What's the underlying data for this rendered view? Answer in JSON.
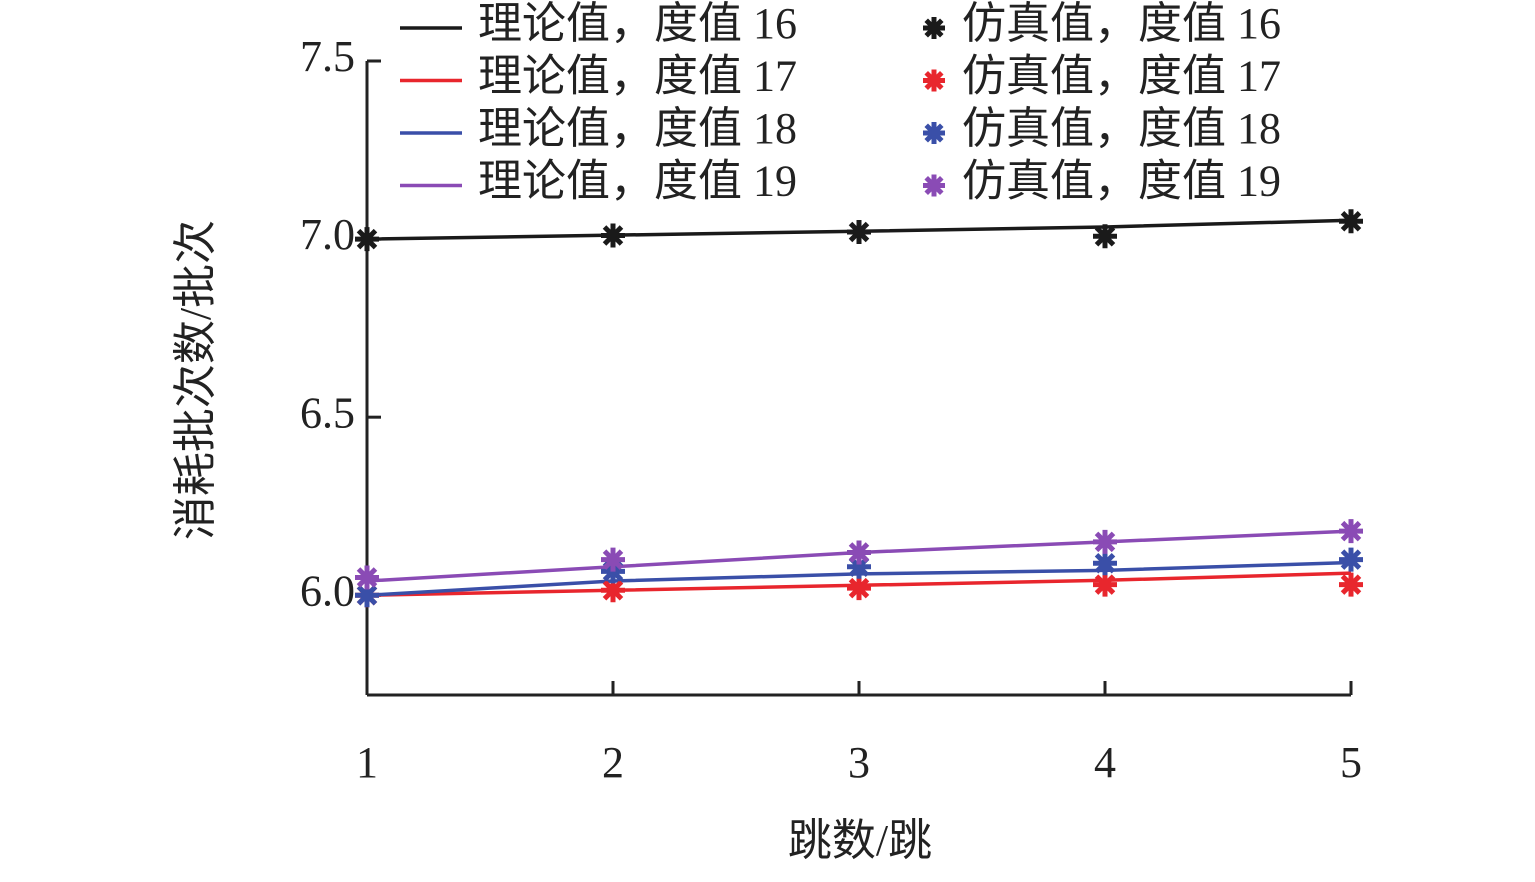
{
  "chart_data": {
    "type": "line",
    "xlabel": "跳数/跳",
    "ylabel": "消耗批次数/批次",
    "xlim": [
      1,
      5
    ],
    "xticks": [
      1,
      2,
      3,
      4,
      5
    ],
    "ylim": [
      5.72,
      7.5
    ],
    "yticks": [
      {
        "value": 6,
        "label": "6.0"
      },
      {
        "value": 6.5,
        "label": "6.5"
      },
      {
        "value": 7,
        "label": "7.0"
      },
      {
        "value": 7.5,
        "label": "7.5"
      }
    ],
    "x": [
      1,
      2,
      3,
      4,
      5
    ],
    "series": [
      {
        "name": "理论值，度值 16",
        "color": "#1a1a1a",
        "mode": "line",
        "values": [
          7.0,
          7.011,
          7.022,
          7.034,
          7.053
        ]
      },
      {
        "name": "理论值，度值 17",
        "color": "#e8262d",
        "mode": "line",
        "values": [
          6.0,
          6.014,
          6.028,
          6.042,
          6.062
        ]
      },
      {
        "name": "理论值，度值 18",
        "color": "#3a4fa8",
        "mode": "line",
        "values": [
          6.0,
          6.04,
          6.06,
          6.07,
          6.092
        ]
      },
      {
        "name": "理论值，度值 19",
        "color": "#8a4bb5",
        "mode": "line",
        "values": [
          6.04,
          6.08,
          6.12,
          6.15,
          6.18
        ]
      },
      {
        "name": "仿真值，度值 16",
        "color": "#1a1a1a",
        "mode": "marker",
        "values": [
          7.0,
          7.01,
          7.02,
          7.008,
          7.05
        ]
      },
      {
        "name": "仿真值，度值 17",
        "color": "#e8262d",
        "mode": "marker",
        "values": [
          6.0,
          6.014,
          6.02,
          6.03,
          6.03
        ]
      },
      {
        "name": "仿真值，度值 18",
        "color": "#3a4fa8",
        "mode": "marker",
        "values": [
          6.0,
          6.067,
          6.08,
          6.09,
          6.1
        ]
      },
      {
        "name": "仿真值，度值 19",
        "color": "#8a4bb5",
        "mode": "marker",
        "values": [
          6.05,
          6.1,
          6.12,
          6.15,
          6.18
        ]
      }
    ]
  }
}
